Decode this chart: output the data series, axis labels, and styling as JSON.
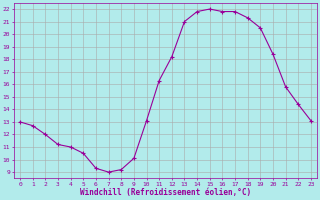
{
  "x": [
    0,
    1,
    2,
    3,
    4,
    5,
    6,
    7,
    8,
    9,
    10,
    11,
    12,
    13,
    14,
    15,
    16,
    17,
    18,
    19,
    20,
    21,
    22,
    23
  ],
  "y": [
    13,
    12.7,
    12,
    11.2,
    11,
    10.5,
    9.3,
    9.0,
    9.2,
    10.1,
    13.1,
    16.3,
    18.2,
    21.0,
    21.8,
    22.0,
    21.8,
    21.8,
    21.3,
    20.5,
    18.4,
    15.8,
    14.4,
    13.1
  ],
  "line_color": "#990099",
  "marker": "+",
  "marker_size": 3,
  "marker_lw": 0.8,
  "bg_color": "#b2ebeb",
  "grid_color": "#aaaaaa",
  "xlabel": "Windchill (Refroidissement éolien,°C)",
  "xlabel_color": "#990099",
  "tick_color": "#990099",
  "xlim": [
    -0.5,
    23.5
  ],
  "ylim": [
    8.5,
    22.5
  ],
  "yticks": [
    9,
    10,
    11,
    12,
    13,
    14,
    15,
    16,
    17,
    18,
    19,
    20,
    21,
    22
  ],
  "xticks": [
    0,
    1,
    2,
    3,
    4,
    5,
    6,
    7,
    8,
    9,
    10,
    11,
    12,
    13,
    14,
    15,
    16,
    17,
    18,
    19,
    20,
    21,
    22,
    23
  ],
  "tick_fontsize": 4.5,
  "xlabel_fontsize": 5.5,
  "line_width": 0.8
}
